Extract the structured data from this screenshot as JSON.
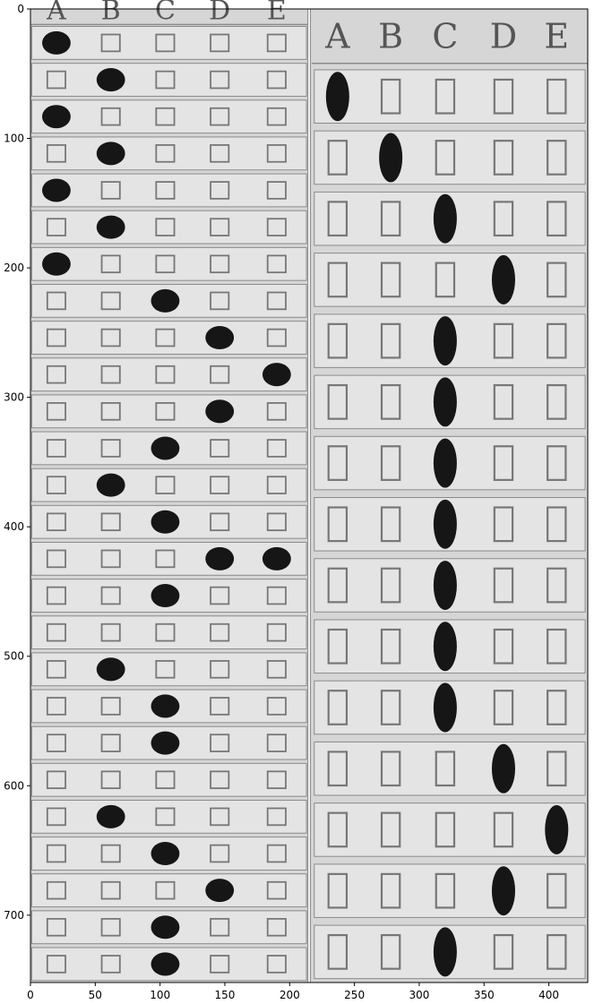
{
  "header_letters": [
    "A",
    "B",
    "C",
    "D",
    "E"
  ],
  "left_panel_marked": [
    "A",
    "B",
    "A",
    "B",
    "A",
    "B",
    "A",
    "C",
    "D",
    "E",
    "D",
    "C",
    "B",
    "C",
    "D+E",
    "C",
    "",
    "B",
    "C",
    "C",
    "",
    "B",
    "C",
    "D",
    "C",
    "C"
  ],
  "right_panel_marked": [
    "A",
    "B",
    "C",
    "D",
    "C",
    "C",
    "C",
    "C",
    "C",
    "C",
    "C",
    "D",
    "E",
    "D",
    "C"
  ],
  "x_ticks": [
    "0",
    "50",
    "100",
    "150",
    "200",
    "250",
    "300",
    "350",
    "400"
  ],
  "y_ticks": [
    "0",
    "100",
    "200",
    "300",
    "400",
    "500",
    "600",
    "700"
  ],
  "palette": {
    "paper": "#d6d6d6",
    "row": "#e4e4e4",
    "line": "#8a8a8a",
    "box": "#777777",
    "ink": "#161616"
  }
}
